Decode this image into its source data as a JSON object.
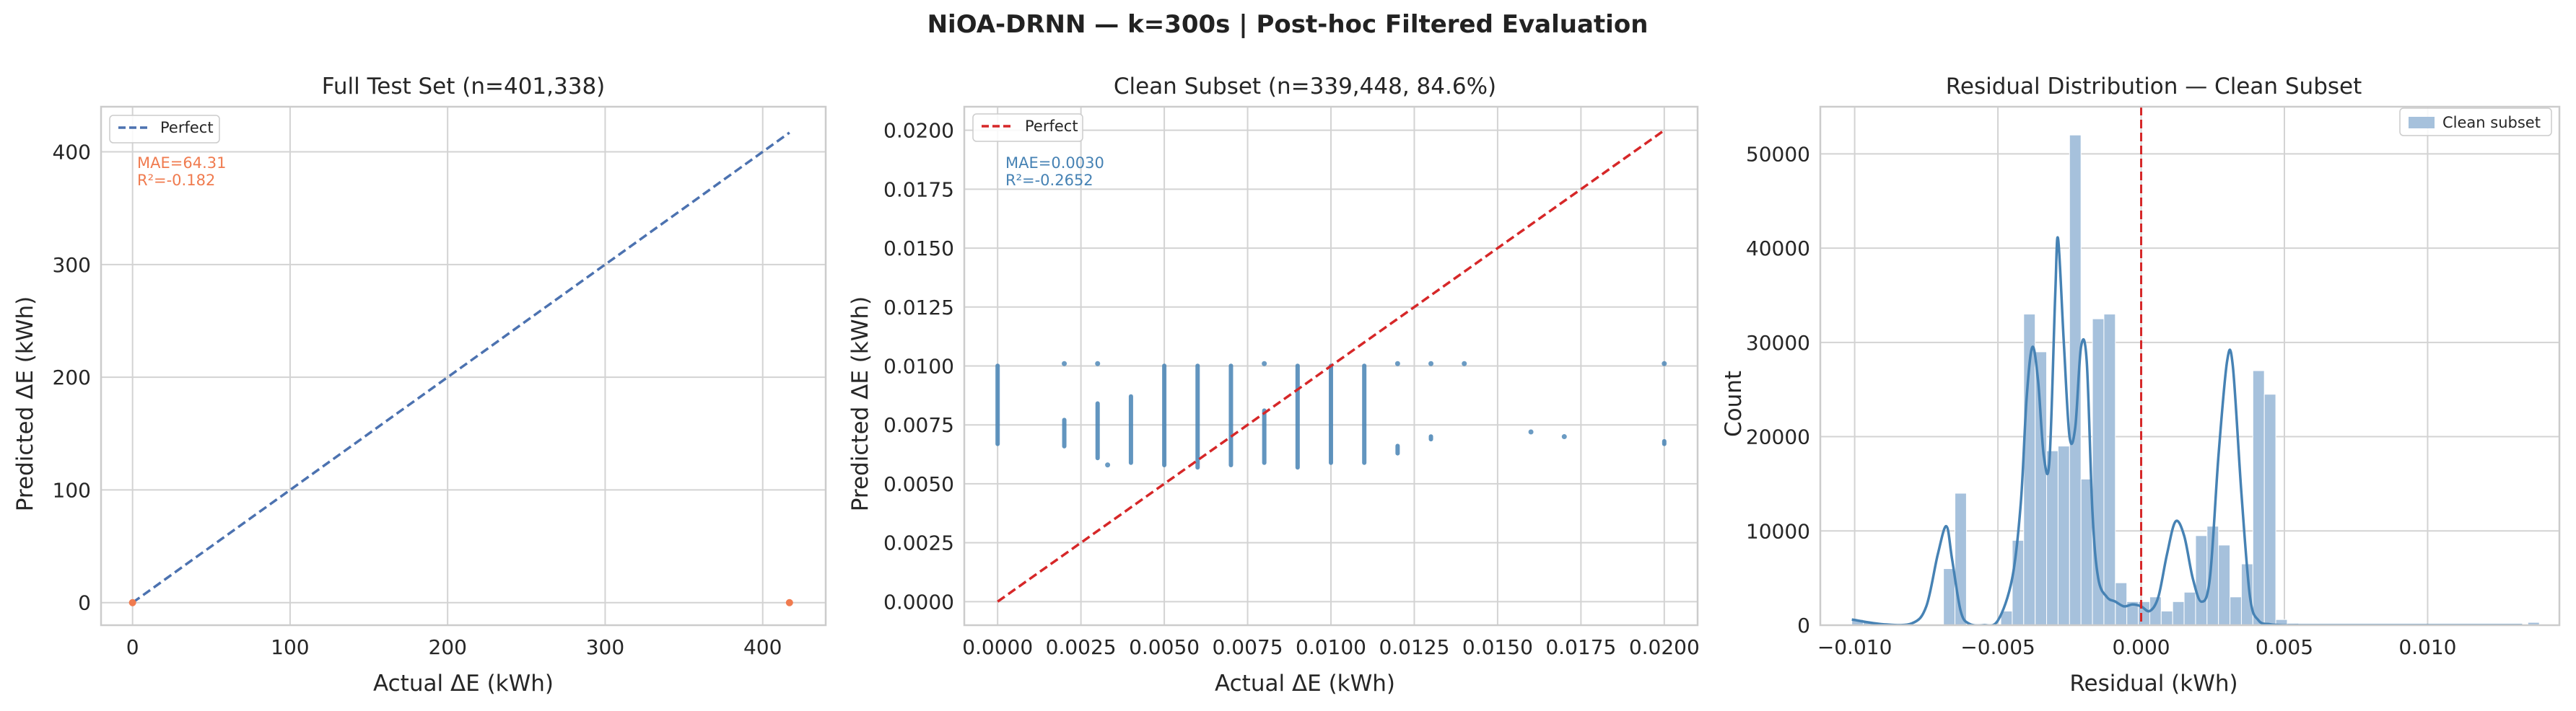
{
  "figure": {
    "suptitle": "NiOA-DRNN — k=300s | Post-hoc Filtered Evaluation"
  },
  "colors": {
    "perfect_blue": "#4c72b0",
    "perfect_red": "#d62728",
    "scatter_orange": "#f07b4f",
    "scatter_blue": "#4682b4",
    "hist_fill": "#a6c1dc",
    "kde_line": "#4682b4",
    "zero_line": "#d62728",
    "grid": "#d3d3d3",
    "spine": "#cccccc"
  },
  "chart_data": [
    {
      "type": "line",
      "title": "Full Test Set (n=401,338)",
      "xlabel": "Actual ΔE (kWh)",
      "ylabel": "Predicted ΔE (kWh)",
      "xlim": [
        -20,
        440
      ],
      "ylim": [
        -20,
        440
      ],
      "xticks": [
        0,
        100,
        200,
        300,
        400
      ],
      "xtick_labels": [
        "0",
        "100",
        "200",
        "300",
        "400"
      ],
      "yticks": [
        0,
        100,
        200,
        300,
        400
      ],
      "ytick_labels": [
        "0",
        "100",
        "200",
        "300",
        "400"
      ],
      "grid": true,
      "legend": {
        "location": "upper-left",
        "entries": [
          "Perfect"
        ]
      },
      "perfect_line": {
        "name": "Perfect",
        "x": [
          0,
          417
        ],
        "y": [
          0,
          417
        ],
        "style": "dashed",
        "color": "#4c72b0"
      },
      "points": [
        {
          "x": 0,
          "y": 0
        },
        {
          "x": 417,
          "y": 0
        }
      ],
      "point_color": "#f07b4f",
      "annotation": {
        "lines": [
          "MAE=64.31",
          "R²=-0.182"
        ],
        "color": "#f07b4f"
      }
    },
    {
      "type": "scatter",
      "title": "Clean Subset (n=339,448, 84.6%)",
      "xlabel": "Actual ΔE (kWh)",
      "ylabel": "Predicted ΔE (kWh)",
      "xlim": [
        -0.001,
        0.021
      ],
      "ylim": [
        -0.001,
        0.021
      ],
      "xticks": [
        0,
        0.0025,
        0.005,
        0.0075,
        0.01,
        0.0125,
        0.015,
        0.0175,
        0.02
      ],
      "xtick_labels": [
        "0.0000",
        "0.0025",
        "0.0050",
        "0.0075",
        "0.0100",
        "0.0125",
        "0.0150",
        "0.0175",
        "0.0200"
      ],
      "yticks": [
        0,
        0.0025,
        0.005,
        0.0075,
        0.01,
        0.0125,
        0.015,
        0.0175,
        0.02
      ],
      "ytick_labels": [
        "0.0000",
        "0.0025",
        "0.0050",
        "0.0075",
        "0.0100",
        "0.0125",
        "0.0150",
        "0.0175",
        "0.0200"
      ],
      "grid": true,
      "legend": {
        "location": "upper-left",
        "entries": [
          "Perfect"
        ]
      },
      "perfect_line": {
        "name": "Perfect",
        "x": [
          0,
          0.02
        ],
        "y": [
          0,
          0.02
        ],
        "style": "dashed",
        "color": "#d62728"
      },
      "point_color": "#4682b4",
      "columns": [
        {
          "x": 0.0,
          "ymin": 0.0066,
          "ymax": 0.0101
        },
        {
          "x": 0.002,
          "ymin": 0.0065,
          "ymax": 0.0078
        },
        {
          "x": 0.003,
          "ymin": 0.006,
          "ymax": 0.0085
        },
        {
          "x": 0.004,
          "ymin": 0.0058,
          "ymax": 0.0088
        },
        {
          "x": 0.005,
          "ymin": 0.0057,
          "ymax": 0.0101
        },
        {
          "x": 0.006,
          "ymin": 0.0056,
          "ymax": 0.0101
        },
        {
          "x": 0.007,
          "ymin": 0.0057,
          "ymax": 0.0101
        },
        {
          "x": 0.008,
          "ymin": 0.0058,
          "ymax": 0.0082
        },
        {
          "x": 0.009,
          "ymin": 0.0056,
          "ymax": 0.0101
        },
        {
          "x": 0.01,
          "ymin": 0.0058,
          "ymax": 0.0101
        },
        {
          "x": 0.011,
          "ymin": 0.0058,
          "ymax": 0.0101
        },
        {
          "x": 0.012,
          "ymin": 0.0062,
          "ymax": 0.0067
        },
        {
          "x": 0.013,
          "ymin": 0.0068,
          "ymax": 0.0071
        },
        {
          "x": 0.02,
          "ymin": 0.0066,
          "ymax": 0.0069
        }
      ],
      "isolated_points": [
        {
          "x": 0.002,
          "y": 0.0101
        },
        {
          "x": 0.003,
          "y": 0.0101
        },
        {
          "x": 0.0033,
          "y": 0.0058
        },
        {
          "x": 0.008,
          "y": 0.0101
        },
        {
          "x": 0.012,
          "y": 0.0101
        },
        {
          "x": 0.013,
          "y": 0.0101
        },
        {
          "x": 0.014,
          "y": 0.0101
        },
        {
          "x": 0.016,
          "y": 0.0072
        },
        {
          "x": 0.017,
          "y": 0.007
        },
        {
          "x": 0.02,
          "y": 0.0101
        }
      ],
      "annotation": {
        "lines": [
          "MAE=0.0030",
          "R²=-0.2652"
        ],
        "color": "#4682b4"
      }
    },
    {
      "type": "histogram",
      "title": "Residual Distribution — Clean Subset",
      "xlabel": "Residual (kWh)",
      "ylabel": "Count",
      "xlim": [
        -0.0112,
        0.0146
      ],
      "ylim": [
        0,
        55000
      ],
      "xticks": [
        -0.01,
        -0.005,
        0,
        0.005,
        0.01
      ],
      "xtick_labels": [
        "−0.010",
        "−0.005",
        "0.000",
        "0.005",
        "0.010"
      ],
      "yticks": [
        0,
        10000,
        20000,
        30000,
        40000,
        50000
      ],
      "ytick_labels": [
        "0",
        "10000",
        "20000",
        "30000",
        "40000",
        "50000"
      ],
      "grid": true,
      "legend": {
        "location": "upper-right",
        "entries": [
          "Clean subset"
        ]
      },
      "bin_edges_start": -0.0101,
      "bin_width": 0.0004,
      "counts": [
        600,
        300,
        0,
        0,
        0,
        0,
        0,
        0,
        6000,
        14000,
        0,
        0,
        0,
        1500,
        9000,
        33000,
        29000,
        18500,
        19000,
        52000,
        15500,
        32500,
        33000,
        4500,
        2500,
        2500,
        3000,
        1500,
        2500,
        3500,
        9500,
        10500,
        8500,
        3000,
        6500,
        27000,
        24500,
        600,
        200,
        0,
        0,
        0,
        0,
        0,
        0,
        0,
        0,
        0,
        0,
        0,
        0,
        0,
        0,
        0,
        0,
        0,
        0,
        0,
        0,
        300
      ],
      "kde": {
        "x": [
          -0.0101,
          -0.009,
          -0.008,
          -0.0075,
          -0.0071,
          -0.0068,
          -0.0066,
          -0.0063,
          -0.006,
          -0.0055,
          -0.005,
          -0.0045,
          -0.0042,
          -0.004,
          -0.0038,
          -0.0036,
          -0.0034,
          -0.0032,
          -0.003,
          -0.0029,
          -0.0027,
          -0.0025,
          -0.0023,
          -0.0021,
          -0.0019,
          -0.0017,
          -0.0015,
          -0.0012,
          -0.0009,
          -0.0006,
          -0.0003,
          0.0,
          0.0003,
          0.0006,
          0.0009,
          0.0012,
          0.0015,
          0.0018,
          0.0021,
          0.0024,
          0.0027,
          0.003,
          0.0032,
          0.0035,
          0.0038,
          0.0041,
          0.0045,
          0.005,
          0.006,
          0.008,
          0.01,
          0.0133
        ],
        "y": [
          600,
          100,
          200,
          2000,
          7500,
          10500,
          7000,
          1500,
          150,
          0,
          500,
          5000,
          13000,
          24000,
          29500,
          26000,
          18000,
          17500,
          35000,
          41000,
          30000,
          20000,
          21000,
          29500,
          28000,
          12000,
          5000,
          3000,
          2500,
          2000,
          2200,
          2000,
          1500,
          3000,
          7500,
          11000,
          9500,
          5000,
          2500,
          5000,
          18000,
          28000,
          27500,
          14000,
          3000,
          500,
          100,
          0,
          0,
          0,
          0,
          0
        ]
      },
      "vline": {
        "x": 0.0,
        "style": "dashed",
        "color": "#d62728"
      }
    }
  ]
}
